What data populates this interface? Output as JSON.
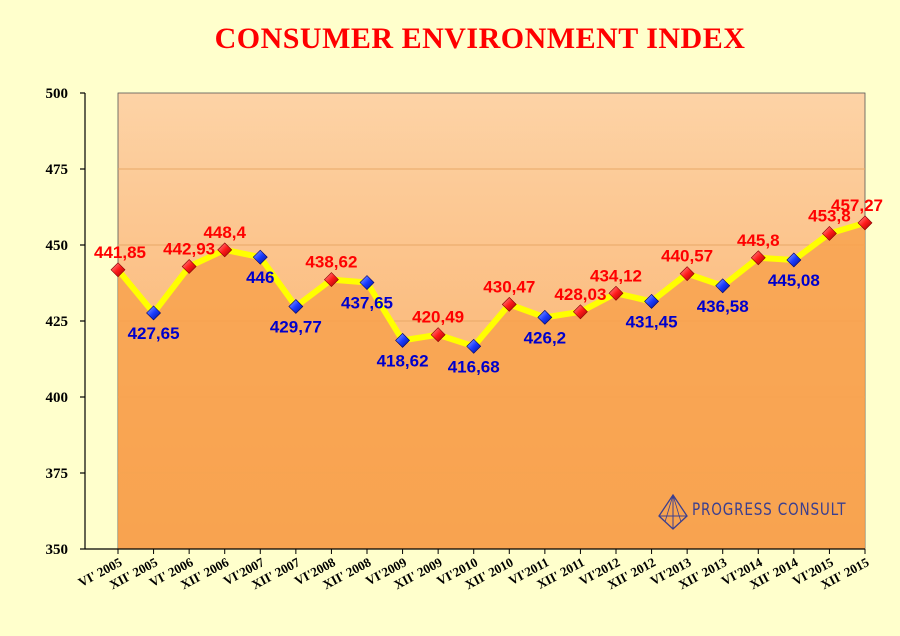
{
  "chart_data": {
    "type": "line",
    "title": "CONSUMER ENVIRONMENT INDEX",
    "categories": [
      "VI' 2005",
      "XII' 2005",
      "VI' 2006",
      "XII' 2006",
      "VI'2007",
      "XII' 2007",
      "VI'2008",
      "XII' 2008",
      "VI'2009",
      "XII' 2009",
      "VI'2010",
      "XII' 2010",
      "VI'2011",
      "XII' 2011",
      "VI'2012",
      "XII' 2012",
      "VI'2013",
      "XII' 2013",
      "VI'2014",
      "XII' 2014",
      "VI'2015",
      "XII' 2015"
    ],
    "values": [
      441.85,
      427.65,
      442.93,
      448.4,
      446,
      429.77,
      438.62,
      437.65,
      418.62,
      420.49,
      416.68,
      430.47,
      426.2,
      428.03,
      434.12,
      431.45,
      440.57,
      436.58,
      445.8,
      445.08,
      453.8,
      457.27
    ],
    "labels": [
      "441,85",
      "427,65",
      "442,93",
      "448,4",
      "446",
      "429,77",
      "438,62",
      "437,65",
      "418,62",
      "420,49",
      "416,68",
      "430,47",
      "426,2",
      "428,03",
      "434,12",
      "431,45",
      "440,57",
      "436,58",
      "445,8",
      "445,08",
      "453,8",
      "457,27"
    ],
    "label_positions": [
      "above",
      "below",
      "above",
      "above",
      "below",
      "below",
      "above",
      "below",
      "below",
      "above",
      "below",
      "above",
      "below",
      "above",
      "above",
      "below",
      "above",
      "below",
      "above",
      "below",
      "above",
      "above"
    ],
    "marker_colors": [
      "red",
      "blue",
      "red",
      "red",
      "blue",
      "blue",
      "red",
      "blue",
      "blue",
      "red",
      "blue",
      "red",
      "blue",
      "red",
      "red",
      "blue",
      "red",
      "blue",
      "red",
      "blue",
      "red",
      "red"
    ],
    "ylim": [
      350,
      500
    ],
    "yticks": [
      350,
      375,
      400,
      425,
      450,
      475,
      500
    ],
    "grid": true,
    "colors": {
      "line": "#ffff00",
      "red_marker": "#ff2020",
      "blue_marker": "#1a3cff",
      "red_label": "#ff0000",
      "blue_label": "#0000cc",
      "plot_top": "#fdd2a4",
      "plot_bottom": "#f9a65a",
      "area_fill": "#f8a24e"
    }
  },
  "logo": {
    "text": "PROGRESS CONSULT",
    "icon": "pyramid-logo-icon"
  }
}
